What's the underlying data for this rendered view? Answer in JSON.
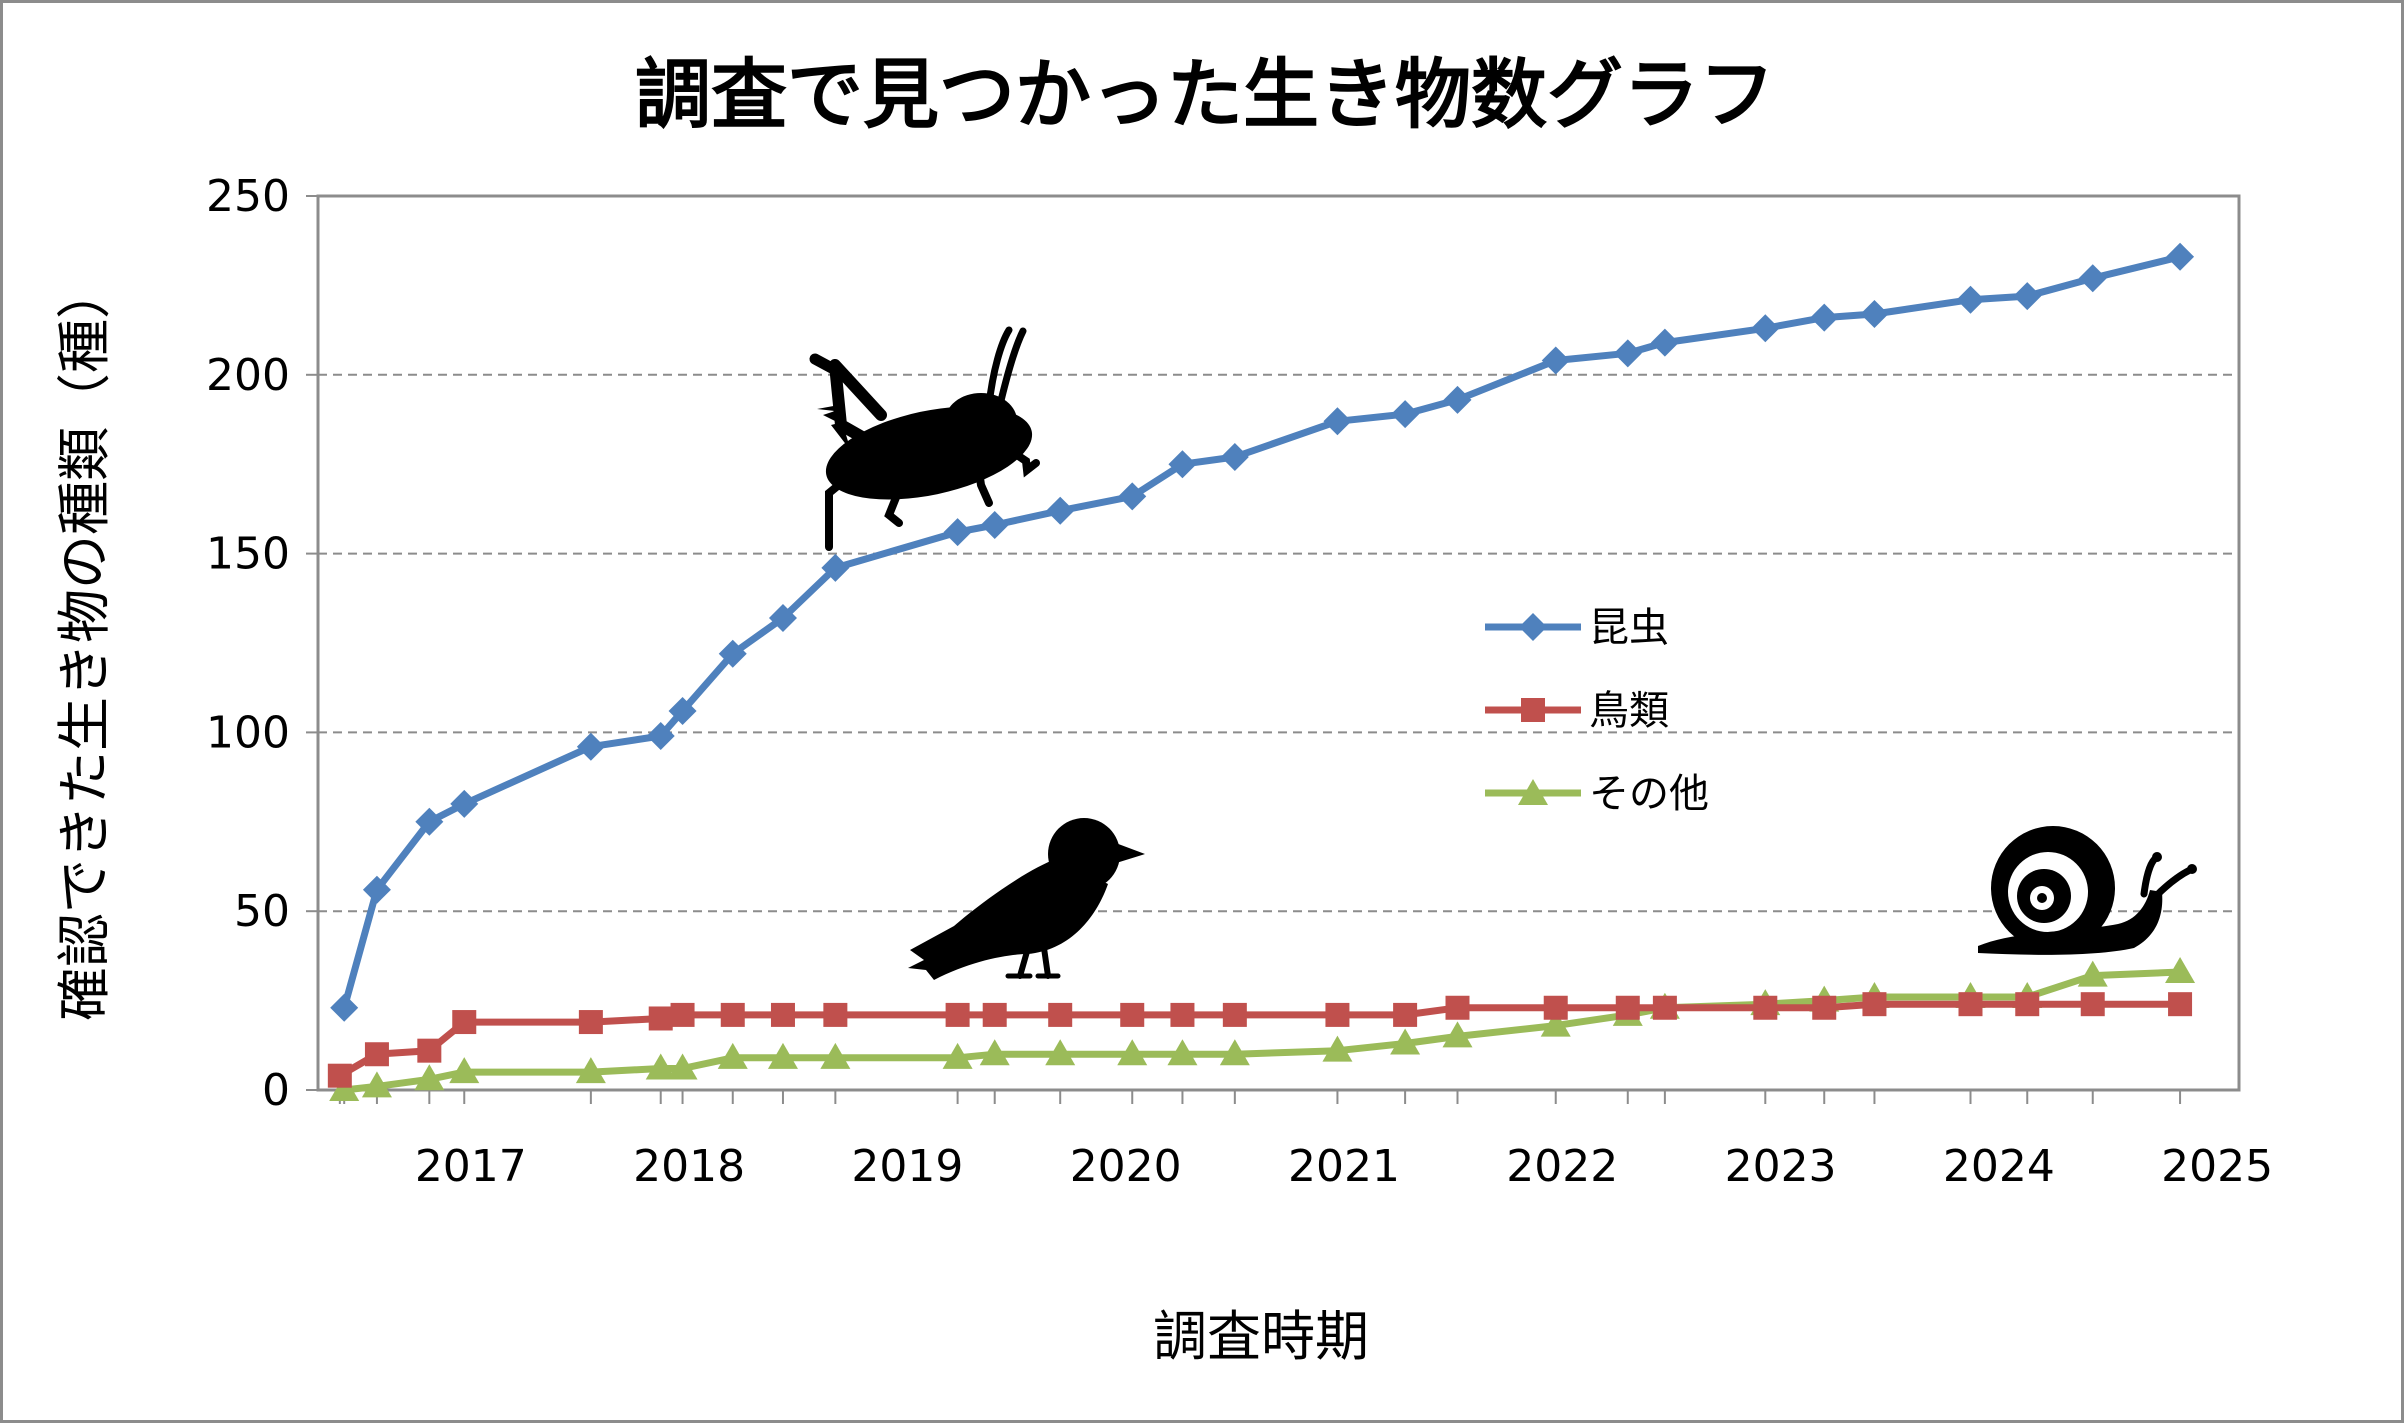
{
  "chart_data": {
    "type": "line",
    "title": "調査で見つかった生き物数グラフ",
    "xlabel": "調査時期",
    "ylabel": "確認できた生き物の種類（種）",
    "ylim": [
      0,
      250
    ],
    "yticks": [
      "0",
      "50",
      "100",
      "150",
      "200",
      "250"
    ],
    "xlim": [
      2016.3,
      2025.1
    ],
    "xticks": [
      "2017",
      "2018",
      "2019",
      "2020",
      "2021",
      "2022",
      "2023",
      "2024",
      "2025"
    ],
    "grid": "horizontal dashed",
    "legend_position": "center-right",
    "series": [
      {
        "name": "昆虫",
        "color": "#4f81bd",
        "marker": "diamond",
        "x": [
          2016.42,
          2016.57,
          2016.81,
          2016.97,
          2017.55,
          2017.87,
          2017.97,
          2018.2,
          2018.43,
          2018.67,
          2019.23,
          2019.4,
          2019.7,
          2020.03,
          2020.26,
          2020.5,
          2020.97,
          2021.28,
          2021.52,
          2021.97,
          2022.3,
          2022.47,
          2022.93,
          2023.2,
          2023.43,
          2023.87,
          2024.13,
          2024.43,
          2024.83
        ],
        "y": [
          23,
          56,
          75,
          80,
          96,
          99,
          106,
          122,
          132,
          146,
          156,
          158,
          162,
          166,
          175,
          177,
          187,
          189,
          193,
          204,
          206,
          209,
          213,
          216,
          217,
          221,
          222,
          227,
          233
        ]
      },
      {
        "name": "鳥類",
        "color": "#c0504d",
        "marker": "square",
        "x": [
          2016.4,
          2016.57,
          2016.81,
          2016.97,
          2017.55,
          2017.87,
          2017.97,
          2018.2,
          2018.43,
          2018.67,
          2019.23,
          2019.4,
          2019.7,
          2020.03,
          2020.26,
          2020.5,
          2020.97,
          2021.28,
          2021.52,
          2021.97,
          2022.3,
          2022.47,
          2022.93,
          2023.2,
          2023.43,
          2023.87,
          2024.13,
          2024.43,
          2024.83
        ],
        "y": [
          4,
          10,
          11,
          19,
          19,
          20,
          21,
          21,
          21,
          21,
          21,
          21,
          21,
          21,
          21,
          21,
          21,
          21,
          23,
          23,
          23,
          23,
          23,
          23,
          24,
          24,
          24,
          24,
          24
        ]
      },
      {
        "name": "その他",
        "color": "#9bbb59",
        "marker": "triangle",
        "x": [
          2016.42,
          2016.57,
          2016.81,
          2016.97,
          2017.55,
          2017.87,
          2017.97,
          2018.2,
          2018.43,
          2018.67,
          2019.23,
          2019.4,
          2019.7,
          2020.03,
          2020.26,
          2020.5,
          2020.97,
          2021.28,
          2021.52,
          2021.97,
          2022.3,
          2022.47,
          2022.93,
          2023.2,
          2023.43,
          2023.87,
          2024.13,
          2024.43,
          2024.83
        ],
        "y": [
          0,
          1,
          3,
          5,
          5,
          6,
          6,
          9,
          9,
          9,
          9,
          10,
          10,
          10,
          10,
          10,
          11,
          13,
          15,
          18,
          21,
          23,
          24,
          25,
          26,
          26,
          26,
          32,
          33
        ]
      }
    ]
  }
}
